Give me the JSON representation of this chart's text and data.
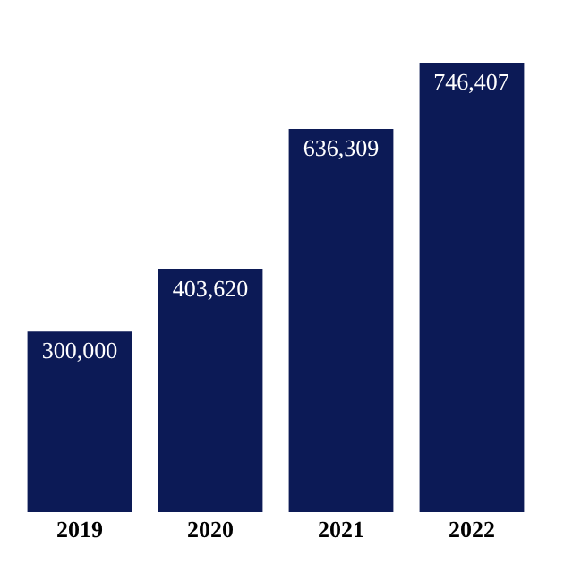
{
  "chart_data": {
    "type": "bar",
    "categories": [
      "2019",
      "2020",
      "2021",
      "2022"
    ],
    "values": [
      300000,
      403620,
      636309,
      746407
    ],
    "color": "#0c1a56",
    "data_labels": true,
    "value_labels": [
      "300,000",
      "403,620",
      "636,309",
      "746,407"
    ],
    "grid": false,
    "legend": false
  }
}
